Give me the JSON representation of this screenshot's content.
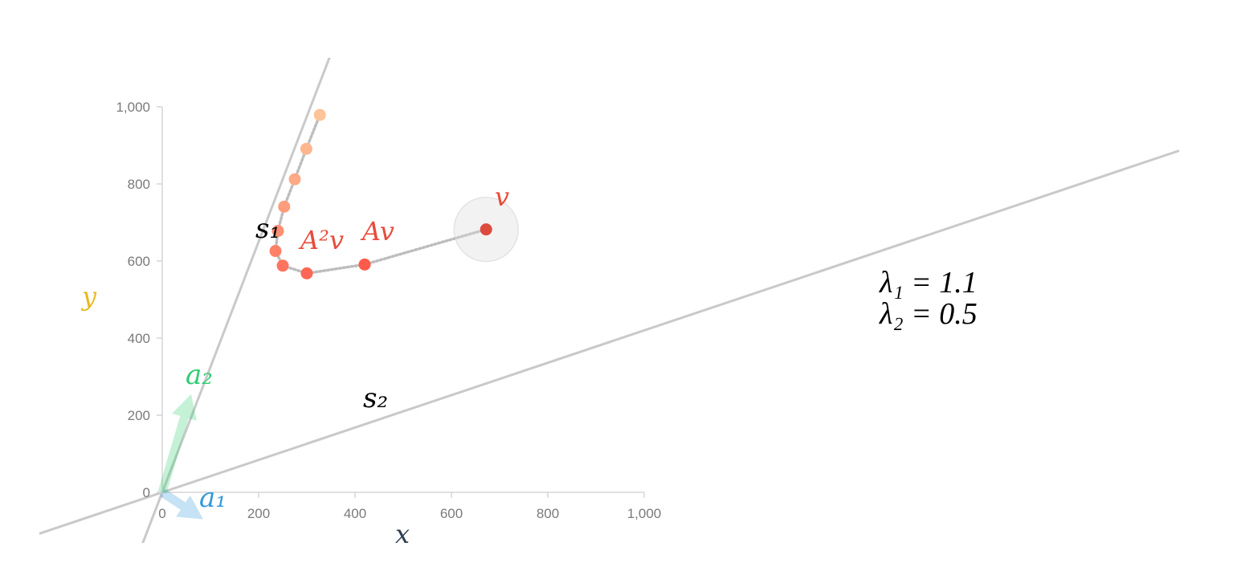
{
  "x_axis": {
    "label": "x",
    "label_color": "#2c3e50",
    "ticks": [
      {
        "value": 0,
        "text": "0"
      },
      {
        "value": 200,
        "text": "200"
      },
      {
        "value": 400,
        "text": "400"
      },
      {
        "value": 600,
        "text": "600"
      },
      {
        "value": 800,
        "text": "800"
      },
      {
        "value": 1000,
        "text": "1,000"
      }
    ]
  },
  "y_axis": {
    "label": "y",
    "label_color": "#e8b923",
    "ticks": [
      {
        "value": 0,
        "text": "0"
      },
      {
        "value": 200,
        "text": "200"
      },
      {
        "value": 400,
        "text": "400"
      },
      {
        "value": 600,
        "text": "600"
      },
      {
        "value": 800,
        "text": "800"
      },
      {
        "value": 1000,
        "text": "1,000"
      }
    ]
  },
  "basis_vectors": [
    {
      "name": "a₁",
      "color": "#3498db",
      "to": [
        85,
        -70
      ]
    },
    {
      "name": "a₂",
      "color": "#2ecc71",
      "to": [
        60,
        255
      ]
    }
  ],
  "eigen_lines": [
    {
      "name": "s₁",
      "direction": [
        1,
        3.25
      ]
    },
    {
      "name": "s₂",
      "direction": [
        1,
        0.42
      ]
    }
  ],
  "vector": {
    "name": "v",
    "color": "#e74c3c",
    "value": [
      672,
      682
    ]
  },
  "iterates": {
    "labels": [
      "Av",
      "A²v"
    ],
    "label_color": "#e74c3c",
    "points": [
      [
        420,
        591
      ],
      [
        300,
        568
      ],
      [
        250,
        588
      ],
      [
        235,
        626
      ],
      [
        240,
        678
      ],
      [
        253,
        741
      ],
      [
        275,
        812
      ],
      [
        299,
        891
      ],
      [
        327,
        979
      ]
    ],
    "color_start": "#ff5a4a",
    "color_end": "#ffc399"
  },
  "eigenvalues": [
    {
      "text": "λ₁ = 1.1"
    },
    {
      "text": "λ₂ = 0.5"
    }
  ]
}
